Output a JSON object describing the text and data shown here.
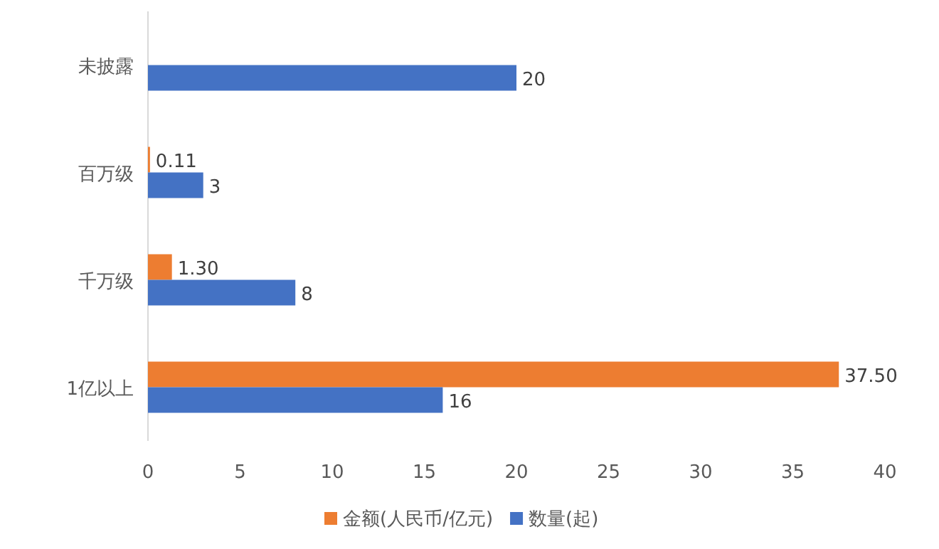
{
  "chart_data": {
    "type": "bar",
    "orientation": "horizontal",
    "categories": [
      "未披露",
      "百万级",
      "千万级",
      "1亿以上"
    ],
    "series": [
      {
        "name": "金额(人民币/亿元)",
        "color": "#ed7d31",
        "values": [
          null,
          0.11,
          1.3,
          37.5
        ],
        "value_labels": [
          null,
          "0.11",
          "1.30",
          "37.50"
        ]
      },
      {
        "name": "数量(起)",
        "color": "#4472c4",
        "values": [
          20,
          3,
          8,
          16
        ],
        "value_labels": [
          "20",
          "3",
          "8",
          "16"
        ]
      }
    ],
    "xlim": [
      0,
      40
    ],
    "xticks": [
      0,
      5,
      10,
      15,
      20,
      25,
      30,
      35,
      40
    ],
    "grid": false,
    "legend": "bottom"
  }
}
